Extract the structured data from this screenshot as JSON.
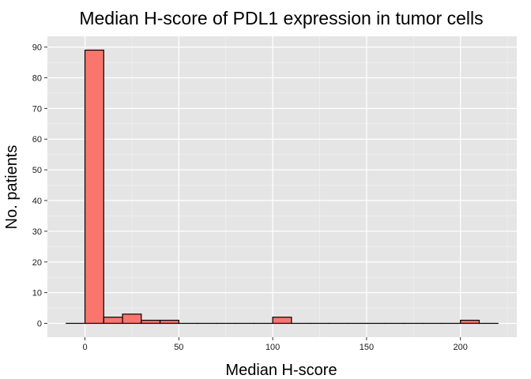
{
  "chart_data": {
    "type": "bar",
    "title": "Median H-score of PDL1 expression in tumor cells",
    "xlabel": "Median H-score",
    "ylabel": "No. patients",
    "binwidth": 10,
    "bins": [
      {
        "start": -10,
        "end": 0,
        "count": 0
      },
      {
        "start": 0,
        "end": 10,
        "count": 89
      },
      {
        "start": 10,
        "end": 20,
        "count": 2
      },
      {
        "start": 20,
        "end": 30,
        "count": 3
      },
      {
        "start": 30,
        "end": 40,
        "count": 1
      },
      {
        "start": 40,
        "end": 50,
        "count": 1
      },
      {
        "start": 50,
        "end": 60,
        "count": 0
      },
      {
        "start": 60,
        "end": 70,
        "count": 0
      },
      {
        "start": 70,
        "end": 80,
        "count": 0
      },
      {
        "start": 80,
        "end": 90,
        "count": 0
      },
      {
        "start": 90,
        "end": 100,
        "count": 0
      },
      {
        "start": 100,
        "end": 110,
        "count": 2
      },
      {
        "start": 110,
        "end": 120,
        "count": 0
      },
      {
        "start": 120,
        "end": 130,
        "count": 0
      },
      {
        "start": 130,
        "end": 140,
        "count": 0
      },
      {
        "start": 140,
        "end": 150,
        "count": 0
      },
      {
        "start": 150,
        "end": 160,
        "count": 0
      },
      {
        "start": 160,
        "end": 170,
        "count": 0
      },
      {
        "start": 170,
        "end": 180,
        "count": 0
      },
      {
        "start": 180,
        "end": 190,
        "count": 0
      },
      {
        "start": 190,
        "end": 200,
        "count": 0
      },
      {
        "start": 200,
        "end": 210,
        "count": 1
      },
      {
        "start": 210,
        "end": 220,
        "count": 0
      }
    ],
    "xticks": [
      0,
      50,
      100,
      150,
      200
    ],
    "yticks": [
      0,
      10,
      20,
      30,
      40,
      50,
      60,
      70,
      80,
      90
    ],
    "xlim": [
      -20,
      230
    ],
    "ylim": [
      -4.5,
      93.5
    ],
    "grid": true,
    "legend": "none",
    "colors": {
      "panel_bg": "#e5e5e5",
      "grid_major": "#ffffff",
      "grid_minor": "#f2f2f2",
      "bar_fill": "#f8766d",
      "bar_stroke": "#000000"
    }
  }
}
